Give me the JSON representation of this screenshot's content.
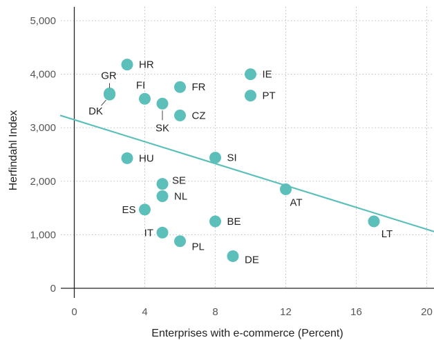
{
  "chart_data": {
    "type": "scatter",
    "title": "",
    "xlabel": "Enterprises with e-commerce (Percent)",
    "ylabel": "Herfindahl Index",
    "xlim": [
      -0.5,
      20.5
    ],
    "ylim": [
      0,
      5200
    ],
    "x_ticks": [
      "0",
      "4",
      "8",
      "12",
      "16",
      "20"
    ],
    "x_tick_values": [
      0,
      4,
      8,
      12,
      16,
      20
    ],
    "y_ticks": [
      "0",
      "1,000",
      "2,000",
      "3,000",
      "4,000",
      "5,000"
    ],
    "y_tick_values": [
      0,
      1000,
      2000,
      3000,
      4000,
      5000
    ],
    "grid": true,
    "marker_color": "#5cbfb9",
    "trend_color": "#5cbfb9",
    "trendline": {
      "x": [
        -0.8,
        20.8
      ],
      "y": [
        3230,
        1020
      ]
    },
    "points": [
      {
        "label": "HR",
        "x": 3,
        "y": 4180
      },
      {
        "label": "IE",
        "x": 10,
        "y": 4000
      },
      {
        "label": "FR",
        "x": 6,
        "y": 3760
      },
      {
        "label": "GR",
        "x": 2,
        "y": 3640
      },
      {
        "label": "DK",
        "x": 2,
        "y": 3620
      },
      {
        "label": "PT",
        "x": 10,
        "y": 3600
      },
      {
        "label": "FI",
        "x": 4,
        "y": 3540
      },
      {
        "label": "SK",
        "x": 5,
        "y": 3450
      },
      {
        "label": "CZ",
        "x": 6,
        "y": 3230
      },
      {
        "label": "HU",
        "x": 3,
        "y": 2430
      },
      {
        "label": "SI",
        "x": 8,
        "y": 2440
      },
      {
        "label": "SE",
        "x": 5,
        "y": 1950
      },
      {
        "label": "AT",
        "x": 12,
        "y": 1850
      },
      {
        "label": "NL",
        "x": 5,
        "y": 1720
      },
      {
        "label": "ES",
        "x": 4,
        "y": 1470
      },
      {
        "label": "BE",
        "x": 8,
        "y": 1250
      },
      {
        "label": "LT",
        "x": 17,
        "y": 1250
      },
      {
        "label": "IT",
        "x": 5,
        "y": 1040
      },
      {
        "label": "PL",
        "x": 6,
        "y": 880
      },
      {
        "label": "DE",
        "x": 9,
        "y": 600
      }
    ]
  }
}
